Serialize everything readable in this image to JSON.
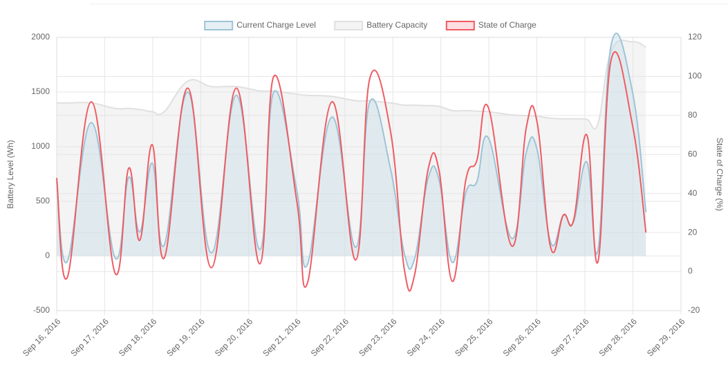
{
  "chart_data": {
    "type": "line",
    "x": [
      0,
      0.22,
      0.72,
      1.22,
      1.5,
      1.73,
      1.99,
      2.24,
      2.73,
      3.22,
      3.74,
      4.23,
      4.52,
      5.0,
      5.22,
      5.73,
      6.23,
      6.52,
      6.95,
      7.24,
      7.45,
      7.74,
      7.96,
      8.24,
      8.52,
      8.75,
      8.99,
      9.48,
      9.78,
      10.0,
      10.29,
      10.55,
      10.76,
      11.04,
      11.27,
      11.55,
      11.99,
      12.27
    ],
    "series": [
      {
        "name": "Current Charge Level",
        "color": "#9dc3d6",
        "fill": "rgba(200,222,230,0.45)",
        "values": [
          680,
          -50,
          1220,
          -20,
          720,
          220,
          850,
          100,
          1500,
          30,
          1470,
          60,
          1500,
          600,
          -80,
          1270,
          80,
          1410,
          800,
          20,
          -30,
          720,
          700,
          -60,
          580,
          680,
          1080,
          160,
          950,
          980,
          120,
          370,
          310,
          860,
          50,
          1940,
          1500,
          400
        ]
      },
      {
        "name": "Battery Capacity",
        "color": "#e0e0e0",
        "fill": "rgba(228,228,228,0.4)",
        "values": [
          1400,
          1400,
          1400,
          1350,
          1350,
          1340,
          1320,
          1320,
          1600,
          1550,
          1550,
          1510,
          1510,
          1480,
          1470,
          1460,
          1420,
          1420,
          1400,
          1380,
          1380,
          1375,
          1370,
          1330,
          1330,
          1325,
          1320,
          1290,
          1285,
          1280,
          1260,
          1255,
          1255,
          1250,
          1210,
          1880,
          1960,
          1910
        ]
      },
      {
        "name": "State of Charge",
        "color": "#ee5c63",
        "fill": "rgba(255,200,205,0.6)",
        "axis": "y2",
        "values": [
          48,
          -3,
          87,
          -1,
          53,
          16,
          65,
          7,
          94,
          2,
          94,
          4,
          100,
          36,
          -6,
          87,
          6,
          99,
          72,
          1,
          -2,
          53,
          52,
          -5,
          47,
          57,
          84,
          13,
          74,
          77,
          12,
          29,
          26,
          70,
          5,
          109,
          75,
          20
        ]
      }
    ],
    "xlim": [
      0,
      13
    ],
    "xticks": [
      {
        "value": 0,
        "label": "Sep 16, 2016"
      },
      {
        "value": 1,
        "label": "Sep 17, 2016"
      },
      {
        "value": 2,
        "label": "Sep 18, 2016"
      },
      {
        "value": 3,
        "label": "Sep 19, 2016"
      },
      {
        "value": 4,
        "label": "Sep 20, 2016"
      },
      {
        "value": 5,
        "label": "Sep 21, 2016"
      },
      {
        "value": 6,
        "label": "Sep 22, 2016"
      },
      {
        "value": 7,
        "label": "Sep 23, 2016"
      },
      {
        "value": 8,
        "label": "Sep 24, 2016"
      },
      {
        "value": 9,
        "label": "Sep 25, 2016"
      },
      {
        "value": 10,
        "label": "Sep 26, 2016"
      },
      {
        "value": 11,
        "label": "Sep 27, 2016"
      },
      {
        "value": 12,
        "label": "Sep 28, 2016"
      },
      {
        "value": 13,
        "label": "Sep 29, 2016"
      }
    ],
    "ylim": [
      -500,
      2000
    ],
    "yticks": [
      -500,
      0,
      500,
      1000,
      1500,
      2000
    ],
    "y2lim": [
      -20,
      120
    ],
    "y2ticks": [
      -20,
      0,
      20,
      40,
      60,
      80,
      100,
      120
    ],
    "ylabel": "Battery Level (Wh)",
    "y2label": "State of Charge (%)",
    "grid": true,
    "legend": "top"
  }
}
